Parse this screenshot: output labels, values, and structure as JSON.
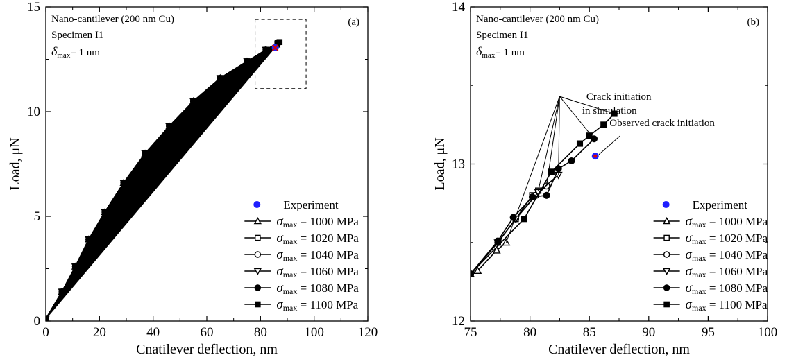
{
  "chart_data": [
    {
      "type": "line",
      "panel_label": "(a)",
      "xlabel": "Cnatilever deflection, nm",
      "ylabel": "Load, μN",
      "xlim": [
        0,
        120
      ],
      "ylim": [
        0,
        15
      ],
      "xticks": [
        0,
        20,
        40,
        60,
        80,
        100,
        120
      ],
      "yticks": [
        0,
        5,
        10,
        15
      ],
      "annotation_lines": [
        "Nano-cantilever (200 nm Cu)",
        "Specimen I1",
        "= 1 nm"
      ],
      "annotation_symbol": "δ",
      "annotation_subscript": "max",
      "legend_position": "bottom-right",
      "experiment": {
        "name": "Experiment",
        "color": "#1f1fff",
        "x": [
          85.5
        ],
        "y": [
          13.05
        ]
      },
      "series": [
        {
          "name": "= 1000 MPa",
          "marker": "triangle-up",
          "x": [
            0,
            6,
            11,
            16,
            22,
            29,
            37,
            46,
            55,
            65,
            75,
            82,
            86
          ],
          "y": [
            0.1,
            1.4,
            2.6,
            3.9,
            5.2,
            6.6,
            8.0,
            9.3,
            10.5,
            11.6,
            12.4,
            12.9,
            13.2
          ]
        },
        {
          "name": "= 1020 MPa",
          "marker": "square-open",
          "x": [
            0,
            6,
            11,
            16,
            22,
            29,
            37,
            46,
            55,
            65,
            75,
            82,
            86.3
          ],
          "y": [
            0.1,
            1.4,
            2.6,
            3.9,
            5.2,
            6.6,
            8.0,
            9.3,
            10.5,
            11.6,
            12.4,
            12.9,
            13.25
          ]
        },
        {
          "name": "= 1040 MPa",
          "marker": "circle-open",
          "x": [
            0,
            6,
            11,
            16,
            22,
            29,
            37,
            46,
            55,
            65,
            75,
            82,
            86.5
          ],
          "y": [
            0.1,
            1.4,
            2.6,
            3.9,
            5.2,
            6.6,
            8.0,
            9.3,
            10.5,
            11.6,
            12.4,
            12.95,
            13.28
          ]
        },
        {
          "name": "= 1060 MPa",
          "marker": "triangle-down",
          "x": [
            0,
            6,
            11,
            16,
            22,
            29,
            37,
            46,
            55,
            65,
            75,
            82,
            86.6
          ],
          "y": [
            0.1,
            1.4,
            2.6,
            3.9,
            5.2,
            6.6,
            8.0,
            9.3,
            10.5,
            11.6,
            12.4,
            12.95,
            13.3
          ]
        },
        {
          "name": "= 1080 MPa",
          "marker": "circle-filled",
          "x": [
            0,
            6,
            11,
            16,
            22,
            29,
            37,
            46,
            55,
            65,
            75,
            82,
            86.8
          ],
          "y": [
            0.1,
            1.4,
            2.6,
            3.9,
            5.2,
            6.6,
            8.0,
            9.3,
            10.5,
            11.6,
            12.4,
            12.95,
            13.3
          ]
        },
        {
          "name": "= 1100 MPa",
          "marker": "square-filled",
          "x": [
            0,
            6,
            11,
            16,
            22,
            29,
            37,
            46,
            55,
            65,
            75,
            82,
            87.1
          ],
          "y": [
            0.1,
            1.4,
            2.6,
            3.9,
            5.2,
            6.6,
            8.0,
            9.3,
            10.5,
            11.6,
            12.4,
            12.95,
            13.32
          ]
        }
      ],
      "dashed_box": {
        "x": [
          78,
          97
        ],
        "y": [
          11.1,
          14.4
        ]
      }
    },
    {
      "type": "line",
      "panel_label": "(b)",
      "xlabel": "Cnatilever deflection, nm",
      "ylabel": "Load, μN",
      "xlim": [
        75,
        100
      ],
      "ylim": [
        12,
        14
      ],
      "xticks": [
        75,
        80,
        85,
        90,
        95,
        100
      ],
      "yticks": [
        12,
        13,
        14
      ],
      "annotation_lines": [
        "Nano-cantilever (200 nm Cu)",
        "Specimen I1",
        "= 1 nm"
      ],
      "annotation_symbol": "δ",
      "annotation_subscript": "max",
      "callouts": {
        "crack_simulation_line1": "Crack initiation",
        "crack_simulation_line2": "in simulation",
        "observed": "Observed crack initiation"
      },
      "legend_position": "bottom-right",
      "experiment": {
        "name": "Experiment",
        "color": "#1f1fff",
        "x": [
          85.5
        ],
        "y": [
          13.05
        ]
      },
      "series": [
        {
          "name": "= 1000 MPa",
          "marker": "triangle-up",
          "x": [
            75,
            75.6,
            77.2,
            78.0
          ],
          "y": [
            12.3,
            12.32,
            12.45,
            12.5
          ]
        },
        {
          "name": "= 1020 MPa",
          "marker": "square-open",
          "x": [
            75,
            77.3,
            78.8,
            80.2,
            80.7
          ],
          "y": [
            12.3,
            12.5,
            12.65,
            12.8,
            12.83
          ]
        },
        {
          "name": "= 1040 MPa",
          "marker": "circle-open",
          "x": [
            75,
            77.3,
            78.8,
            80.5,
            81.4
          ],
          "y": [
            12.3,
            12.5,
            12.65,
            12.8,
            12.86
          ]
        },
        {
          "name": "= 1060 MPa",
          "marker": "triangle-down",
          "x": [
            75,
            77.3,
            78.8,
            80.7,
            82.4
          ],
          "y": [
            12.3,
            12.5,
            12.65,
            12.82,
            12.93
          ]
        },
        {
          "name": "= 1080 MPa",
          "marker": "circle-filled",
          "x": [
            75,
            77.3,
            78.6,
            80.2,
            81.4,
            82.4,
            83.5,
            85.4
          ],
          "y": [
            12.3,
            12.51,
            12.66,
            12.79,
            12.8,
            12.97,
            13.02,
            13.16
          ]
        },
        {
          "name": "= 1100 MPa",
          "marker": "square-filled",
          "x": [
            75,
            79.5,
            81.8,
            84.2,
            85.0,
            86.2,
            87.1
          ],
          "y": [
            12.3,
            12.65,
            12.95,
            13.13,
            13.18,
            13.25,
            13.32
          ]
        }
      ]
    }
  ]
}
